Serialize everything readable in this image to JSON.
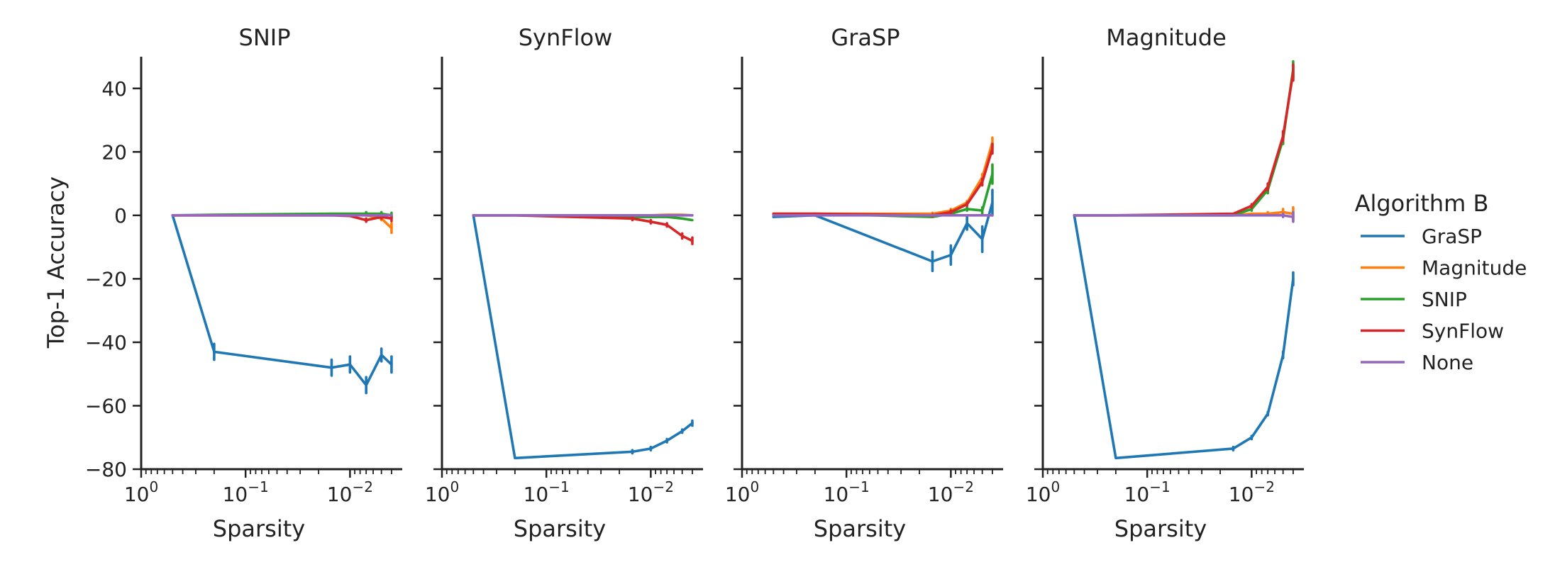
{
  "chart_data": {
    "type": "line",
    "ylabel": "Top-1 Accuracy",
    "xlabel": "Sparsity",
    "x_scale": "log",
    "xlim": [
      1.0,
      0.00316
    ],
    "ylim": [
      -80,
      50
    ],
    "xticks": [
      1,
      0.1,
      0.01
    ],
    "xtick_labels": [
      [
        "10",
        "0"
      ],
      [
        "10",
        "−1"
      ],
      [
        "10",
        "−2"
      ]
    ],
    "yticks": [
      -80,
      -60,
      -40,
      -20,
      0,
      20,
      40
    ],
    "ytick_labels": [
      "−80",
      "−60",
      "−40",
      "−20",
      "0",
      "20",
      "40"
    ],
    "legend": {
      "title": "Algorithm B",
      "placement": "right",
      "entries": [
        "GraSP",
        "Magnitude",
        "SNIP",
        "SynFlow",
        "None"
      ]
    },
    "colors": {
      "GraSP": "#1f77b4",
      "Magnitude": "#ff7f0e",
      "SNIP": "#2ca02c",
      "SynFlow": "#d62728",
      "None": "#9467bd"
    },
    "panels": [
      {
        "title": "SNIP",
        "series": [
          {
            "name": "GraSP",
            "x": [
              0.5,
              0.2,
              0.015,
              0.01,
              0.007,
              0.005,
              0.004
            ],
            "y": [
              0,
              -43,
              -48,
              -47,
              -53.5,
              -44,
              -47
            ],
            "err": [
              0,
              2.5,
              2.5,
              2.5,
              2.5,
              2,
              2.5
            ]
          },
          {
            "name": "Magnitude",
            "x": [
              0.5,
              0.2,
              0.015,
              0.01,
              0.007,
              0.005,
              0.004
            ],
            "y": [
              0,
              0,
              0,
              0.2,
              0,
              -1,
              -4
            ],
            "err": [
              0,
              0,
              0,
              0,
              0,
              0.5,
              1.5
            ]
          },
          {
            "name": "SNIP",
            "x": [
              0.5,
              0.2,
              0.015,
              0.01,
              0.007,
              0.005,
              0.004
            ],
            "y": [
              0,
              0.2,
              0.5,
              0.5,
              0.5,
              0.5,
              0
            ],
            "err": [
              0,
              0,
              0,
              0,
              0.5,
              0.5,
              0.8
            ]
          },
          {
            "name": "SynFlow",
            "x": [
              0.5,
              0.2,
              0.015,
              0.01,
              0.007,
              0.005,
              0.004
            ],
            "y": [
              0,
              0,
              0,
              -0.2,
              -1.5,
              -0.5,
              -1
            ],
            "err": [
              0,
              0,
              0,
              0,
              0.5,
              0.5,
              0.8
            ]
          },
          {
            "name": "None",
            "x": [
              0.5,
              0.2,
              0.015,
              0.01,
              0.007,
              0.005,
              0.004
            ],
            "y": [
              0,
              0,
              0,
              0,
              0,
              0,
              0
            ],
            "err": [
              0,
              0,
              0,
              0,
              0,
              0,
              0
            ]
          }
        ]
      },
      {
        "title": "SynFlow",
        "series": [
          {
            "name": "GraSP",
            "x": [
              0.5,
              0.2,
              0.015,
              0.01,
              0.007,
              0.005,
              0.004
            ],
            "y": [
              0,
              -76.5,
              -74.5,
              -73.5,
              -71,
              -68,
              -65.5
            ],
            "err": [
              0,
              0,
              0.5,
              0.5,
              0.5,
              0.5,
              0.8
            ]
          },
          {
            "name": "Magnitude",
            "x": [
              0.5,
              0.2,
              0.015,
              0.01,
              0.007,
              0.005,
              0.004
            ],
            "y": [
              0,
              0,
              0,
              0,
              0.2,
              0.2,
              0
            ],
            "err": [
              0,
              0,
              0,
              0,
              0,
              0,
              0
            ]
          },
          {
            "name": "SNIP",
            "x": [
              0.5,
              0.2,
              0.015,
              0.01,
              0.007,
              0.005,
              0.004
            ],
            "y": [
              0,
              0,
              -0.5,
              -0.5,
              -0.5,
              -1,
              -1.5
            ],
            "err": [
              0,
              0,
              0,
              0,
              0,
              0,
              0
            ]
          },
          {
            "name": "SynFlow",
            "x": [
              0.5,
              0.2,
              0.015,
              0.01,
              0.007,
              0.005,
              0.004
            ],
            "y": [
              0,
              0,
              -1,
              -2,
              -3,
              -6.5,
              -8
            ],
            "err": [
              0,
              0,
              0.5,
              0.5,
              0.5,
              0.8,
              1
            ]
          },
          {
            "name": "None",
            "x": [
              0.5,
              0.2,
              0.015,
              0.01,
              0.007,
              0.005,
              0.004
            ],
            "y": [
              0,
              0,
              0,
              0,
              0,
              0,
              0
            ],
            "err": [
              0,
              0,
              0,
              0,
              0,
              0,
              0
            ]
          }
        ]
      },
      {
        "title": "GraSP",
        "series": [
          {
            "name": "GraSP",
            "x": [
              0.5,
              0.2,
              0.015,
              0.01,
              0.007,
              0.005,
              0.004
            ],
            "y": [
              -0.5,
              0,
              -14.5,
              -12.5,
              -2.5,
              -7.5,
              4
            ],
            "err": [
              0,
              0,
              3,
              3,
              2,
              4,
              4
            ]
          },
          {
            "name": "Magnitude",
            "x": [
              0.5,
              0.2,
              0.015,
              0.01,
              0.007,
              0.005,
              0.004
            ],
            "y": [
              0.5,
              0.5,
              0.5,
              1.5,
              4,
              12,
              23
            ],
            "err": [
              0,
              0,
              0.3,
              0.5,
              0.5,
              1,
              1.5
            ]
          },
          {
            "name": "SNIP",
            "x": [
              0.5,
              0.2,
              0.015,
              0.01,
              0.007,
              0.005,
              0.004
            ],
            "y": [
              0,
              0.5,
              -0.5,
              0.5,
              2,
              1.5,
              13
            ],
            "err": [
              0,
              0,
              0,
              0.5,
              0.5,
              1,
              3
            ]
          },
          {
            "name": "SynFlow",
            "x": [
              0.5,
              0.2,
              0.015,
              0.01,
              0.007,
              0.005,
              0.004
            ],
            "y": [
              0.5,
              0.5,
              0,
              1,
              3.5,
              10.5,
              21
            ],
            "err": [
              0,
              0,
              0.3,
              0.5,
              0.5,
              1,
              1.5
            ]
          },
          {
            "name": "None",
            "x": [
              0.5,
              0.2,
              0.015,
              0.01,
              0.007,
              0.005,
              0.004
            ],
            "y": [
              0,
              0,
              0,
              0,
              0,
              0,
              0
            ],
            "err": [
              0,
              0,
              0,
              0,
              0,
              0,
              0
            ]
          }
        ]
      },
      {
        "title": "Magnitude",
        "series": [
          {
            "name": "GraSP",
            "x": [
              0.5,
              0.2,
              0.015,
              0.01,
              0.007,
              0.005,
              0.004
            ],
            "y": [
              0,
              -76.5,
              -73.5,
              -70,
              -62.5,
              -44,
              -20
            ],
            "err": [
              0,
              0,
              0.5,
              0.5,
              0.5,
              1,
              2
            ]
          },
          {
            "name": "Magnitude",
            "x": [
              0.5,
              0.2,
              0.015,
              0.01,
              0.007,
              0.005,
              0.004
            ],
            "y": [
              0,
              0,
              0,
              0.5,
              0.5,
              1,
              0.5
            ],
            "err": [
              0,
              0,
              0,
              0,
              0.5,
              1,
              2
            ]
          },
          {
            "name": "SNIP",
            "x": [
              0.5,
              0.2,
              0.015,
              0.01,
              0.007,
              0.005,
              0.004
            ],
            "y": [
              0,
              0,
              0,
              2,
              8,
              24,
              46
            ],
            "err": [
              0,
              0,
              0,
              0.5,
              1,
              1.5,
              2.5
            ]
          },
          {
            "name": "SynFlow",
            "x": [
              0.5,
              0.2,
              0.015,
              0.01,
              0.007,
              0.005,
              0.004
            ],
            "y": [
              0,
              0,
              0.5,
              3,
              9,
              25,
              45
            ],
            "err": [
              0,
              0,
              0,
              0.5,
              1,
              1.5,
              2.5
            ]
          },
          {
            "name": "None",
            "x": [
              0.5,
              0.2,
              0.015,
              0.01,
              0.007,
              0.005,
              0.004
            ],
            "y": [
              0,
              0,
              0,
              0,
              0,
              0,
              -0.5
            ],
            "err": [
              0,
              0,
              0,
              0,
              0,
              0.5,
              1.5
            ]
          }
        ]
      }
    ]
  }
}
